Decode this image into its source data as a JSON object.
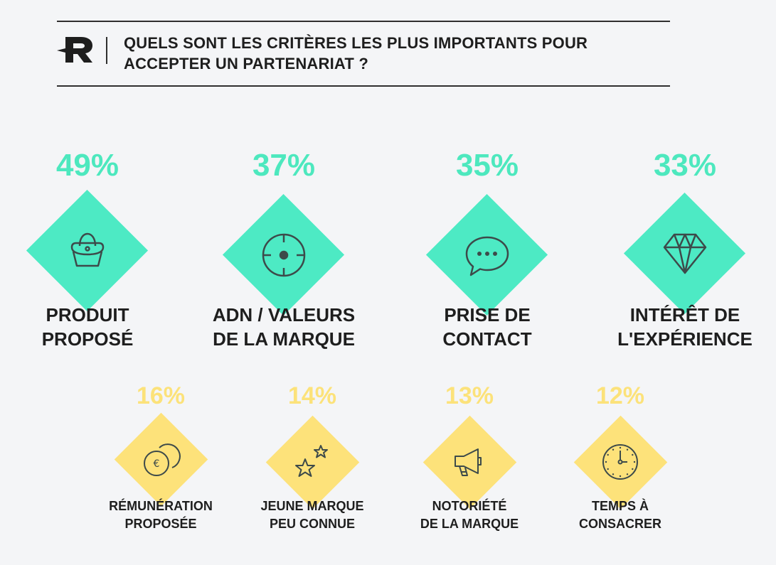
{
  "header": {
    "logo": "r-logo-icon",
    "title_line1": "QUELS SONT LES CRITÈRES LES PLUS IMPORTANTS POUR",
    "title_line2": "ACCEPTER UN PARTENARIAT ?"
  },
  "colors": {
    "primary": "#4deac4",
    "secondary": "#fde27a",
    "text": "#1e1e1e",
    "background": "#f4f5f7"
  },
  "chart_data": {
    "type": "bar",
    "title": "QUELS SONT LES CRITÈRES LES PLUS IMPORTANTS POUR ACCEPTER UN PARTENARIAT ?",
    "unit": "%",
    "categories": [
      "PRODUIT PROPOSÉ",
      "ADN / VALEURS DE LA MARQUE",
      "PRISE DE CONTACT",
      "INTÉRÊT DE L'EXPÉRIENCE",
      "RÉMUNÉRATION PROPOSÉE",
      "JEUNE MARQUE PEU CONNUE",
      "NOTORIÉTÉ DE LA MARQUE",
      "TEMPS À CONSACRER"
    ],
    "values": [
      49,
      37,
      35,
      33,
      16,
      14,
      13,
      12
    ]
  },
  "top_items": [
    {
      "pct": "49%",
      "line1": "PRODUIT",
      "line2": "PROPOSÉ",
      "icon": "handbag-icon"
    },
    {
      "pct": "37%",
      "line1": "ADN / VALEURS",
      "line2": "DE LA MARQUE",
      "icon": "target-icon"
    },
    {
      "pct": "35%",
      "line1": "PRISE DE",
      "line2": "CONTACT",
      "icon": "speech-bubble-icon"
    },
    {
      "pct": "33%",
      "line1": "INTÉRÊT DE",
      "line2": "L'EXPÉRIENCE",
      "icon": "diamond-gem-icon"
    }
  ],
  "bottom_items": [
    {
      "pct": "16%",
      "line1": "RÉMUNÉRATION",
      "line2": "PROPOSÉE",
      "icon": "euro-coins-icon"
    },
    {
      "pct": "14%",
      "line1": "JEUNE MARQUE",
      "line2": "PEU CONNUE",
      "icon": "stars-icon"
    },
    {
      "pct": "13%",
      "line1": "NOTORIÉTÉ",
      "line2": "DE LA MARQUE",
      "icon": "megaphone-icon"
    },
    {
      "pct": "12%",
      "line1": "TEMPS À",
      "line2": "CONSACRER",
      "icon": "clock-icon"
    }
  ]
}
